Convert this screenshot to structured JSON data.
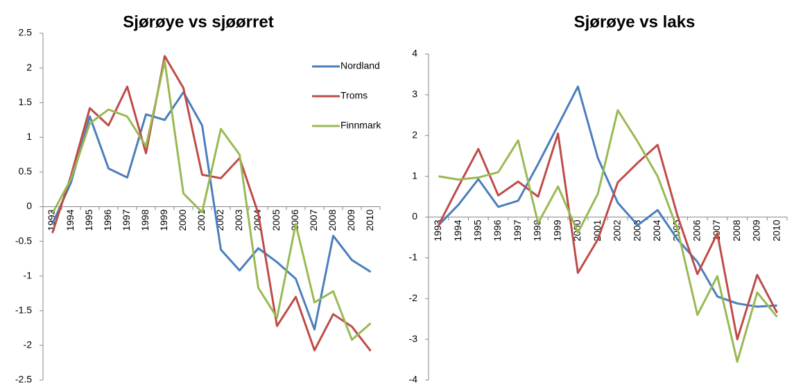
{
  "chart_data": [
    {
      "type": "line",
      "title": "Sjørøye vs sjøørret",
      "categories": [
        "1993",
        "1994",
        "1995",
        "1996",
        "1997",
        "1998",
        "1999",
        "2000",
        "2001",
        "2002",
        "2003",
        "2004",
        "2005",
        "2006",
        "2007",
        "2008",
        "2009",
        "2010"
      ],
      "series": [
        {
          "name": "Nordland",
          "color": "#4a7ebb",
          "values": [
            -0.25,
            0.35,
            1.3,
            0.55,
            0.42,
            1.33,
            1.25,
            1.65,
            1.17,
            -0.62,
            -0.92,
            -0.6,
            -0.8,
            -1.04,
            -1.77,
            -0.42,
            -0.77,
            -0.94
          ]
        },
        {
          "name": "Troms",
          "color": "#be4b48",
          "values": [
            -0.38,
            0.45,
            1.42,
            1.17,
            1.73,
            0.77,
            2.17,
            1.71,
            0.46,
            0.41,
            0.7,
            -0.1,
            -1.72,
            -1.3,
            -2.07,
            -1.55,
            -1.73,
            -2.08
          ]
        },
        {
          "name": "Finnmark",
          "color": "#98b954",
          "values": [
            -0.1,
            0.4,
            1.2,
            1.4,
            1.3,
            0.87,
            2.1,
            0.19,
            -0.08,
            1.12,
            0.75,
            -1.17,
            -1.6,
            -0.25,
            -1.38,
            -1.22,
            -1.92,
            -1.68
          ]
        }
      ],
      "ylim": [
        -2.5,
        2.5
      ],
      "yticks": [
        -2.5,
        -2,
        -1.5,
        -1,
        -0.5,
        0,
        0.5,
        1,
        1.5,
        2,
        2.5
      ],
      "legend": "right"
    },
    {
      "type": "line",
      "title": "Sjørøye vs laks",
      "categories": [
        "1993",
        "1994",
        "1995",
        "1996",
        "1997",
        "1998",
        "1999",
        "2000",
        "2001",
        "2002",
        "2003",
        "2004",
        "2005",
        "2006",
        "2007",
        "2008",
        "2009",
        "2010"
      ],
      "series": [
        {
          "color": "#4a7ebb",
          "values": [
            -0.2,
            0.3,
            0.93,
            0.25,
            0.4,
            1.3,
            2.25,
            3.2,
            1.45,
            0.35,
            -0.2,
            0.17,
            -0.55,
            -1.1,
            -1.95,
            -2.12,
            -2.2,
            -2.17
          ]
        },
        {
          "color": "#be4b48",
          "values": [
            -0.2,
            0.75,
            1.67,
            0.53,
            0.87,
            0.5,
            2.05,
            -1.37,
            -0.55,
            0.85,
            1.33,
            1.77,
            0.03,
            -1.4,
            -0.4,
            -3,
            -1.42,
            -2.35
          ]
        },
        {
          "color": "#98b954",
          "values": [
            1.0,
            0.92,
            0.97,
            1.1,
            1.88,
            -0.15,
            0.75,
            -0.38,
            0.57,
            2.62,
            1.85,
            1.0,
            -0.3,
            -2.4,
            -1.45,
            -3.55,
            -1.85,
            -2.45
          ]
        }
      ],
      "ylim": [
        -4,
        4
      ],
      "yticks": [
        -4,
        -3,
        -2,
        -1,
        0,
        1,
        2,
        3,
        4
      ]
    }
  ]
}
